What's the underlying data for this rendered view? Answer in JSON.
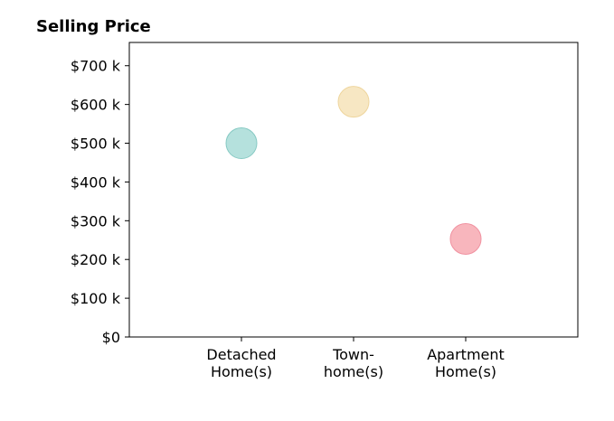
{
  "chart_data": {
    "type": "scatter",
    "title": "Selling Price",
    "xlabel": "",
    "ylabel": "",
    "categories": [
      [
        "Detached",
        "Home(s)"
      ],
      [
        "Town-",
        "home(s)"
      ],
      [
        "Apartment",
        "Home(s)"
      ]
    ],
    "values": [
      500,
      607,
      253
    ],
    "point_colors": [
      "#a8dcd7",
      "#f6e3b8",
      "#f7a9b1"
    ],
    "point_stroke_colors": [
      "#86c9c3",
      "#eed59d",
      "#f091a0"
    ],
    "xlim": [
      0,
      4
    ],
    "ylim": [
      0,
      760
    ],
    "yticks": [
      0,
      100,
      200,
      300,
      400,
      500,
      600,
      700
    ],
    "ytick_labels": [
      "$0",
      "$100 k",
      "$200 k",
      "$300 k",
      "$400 k",
      "$500 k",
      "$600 k",
      "$700 k"
    ],
    "grid": false,
    "legend": "none"
  }
}
